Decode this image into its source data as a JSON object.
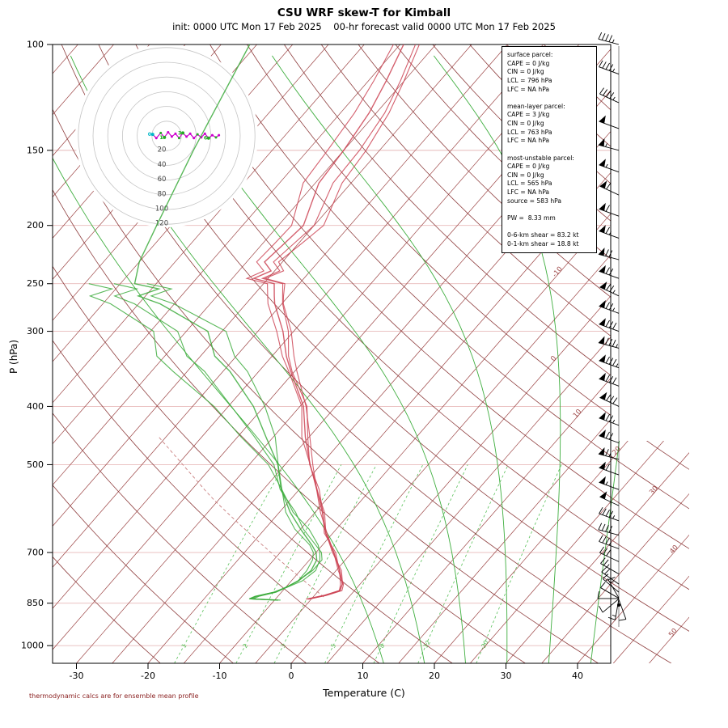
{
  "header": {
    "title": "CSU WRF skew-T for Kimball",
    "subtitle": "init: 0000 UTC Mon 17 Feb 2025    00-hr forecast valid 0000 UTC Mon 17 Feb 2025"
  },
  "axes": {
    "xlabel": "Temperature (C)",
    "ylabel": "P (hPa)",
    "pressure_ticks": [
      100,
      150,
      200,
      250,
      300,
      400,
      500,
      700,
      850,
      1000
    ],
    "temp_ticks": [
      -30,
      -20,
      -10,
      0,
      10,
      20,
      30,
      40
    ]
  },
  "info_box": {
    "text": "surface parcel:\nCAPE = 0 J/kg\nCIN = 0 J/kg\nLCL = 796 hPa\nLFC = NA hPa\n\nmean-layer parcel:\nCAPE = 3 J/kg\nCIN = 0 J/kg\nLCL = 763 hPa\nLFC = NA hPa\n\nmost-unstable parcel:\nCAPE = 0 J/kg\nCIN = 0 J/kg\nLCL = 565 hPa\nLFC = NA hPa\nsource = 583 hPa\n\nPW =  8.33 mm\n\n0-6-km shear = 83.2 kt\n0-1-km shear = 18.8 kt"
  },
  "footer": {
    "note": "thermodynamic calcs are for ensemble mean profile"
  },
  "chart_data": {
    "type": "line",
    "variant": "skew-t log-p ensemble sounding with hodograph and wind barbs",
    "title": "CSU WRF skew-T for Kimball",
    "xlabel": "Temperature (C)",
    "ylabel": "P (hPa)",
    "pressure_range_hpa": [
      100,
      1070
    ],
    "temp_axis_range_c": [
      -33,
      45
    ],
    "isotherm_step_c": 5,
    "dry_adiabat_step_k": 10,
    "moist_adiabats_c": [
      10,
      16,
      22,
      28,
      34,
      40
    ],
    "mixing_ratio_labels": [
      1,
      2,
      3,
      5,
      8,
      12,
      20
    ],
    "isotherm_labels": [
      -10,
      0,
      10,
      20,
      30,
      40,
      50
    ],
    "temperature_profile": [
      [
        100,
        -59.5
      ],
      [
        115,
        -57.5
      ],
      [
        130,
        -56
      ],
      [
        150,
        -55
      ],
      [
        170,
        -54.5
      ],
      [
        200,
        -51.5
      ],
      [
        215,
        -52
      ],
      [
        230,
        -52.5
      ],
      [
        238,
        -50.5
      ],
      [
        245,
        -52
      ],
      [
        250,
        -48.5
      ],
      [
        262,
        -47
      ],
      [
        270,
        -46
      ],
      [
        300,
        -41.5
      ],
      [
        330,
        -38
      ],
      [
        350,
        -35.5
      ],
      [
        400,
        -29.5
      ],
      [
        450,
        -25.5
      ],
      [
        500,
        -21.5
      ],
      [
        550,
        -17.5
      ],
      [
        600,
        -14
      ],
      [
        650,
        -11
      ],
      [
        700,
        -7.5
      ],
      [
        750,
        -4.5
      ],
      [
        790,
        -2.5
      ],
      [
        810,
        -2
      ],
      [
        825,
        -3.5
      ],
      [
        837,
        -5.5
      ]
    ],
    "dewpoint_profile": [
      [
        100,
        -81
      ],
      [
        150,
        -76
      ],
      [
        200,
        -72
      ],
      [
        230,
        -70
      ],
      [
        250,
        -68
      ],
      [
        255,
        -64
      ],
      [
        262,
        -66
      ],
      [
        270,
        -62
      ],
      [
        300,
        -52
      ],
      [
        330,
        -48
      ],
      [
        350,
        -44
      ],
      [
        400,
        -36.5
      ],
      [
        450,
        -31
      ],
      [
        500,
        -26
      ],
      [
        550,
        -22.5
      ],
      [
        600,
        -18.5
      ],
      [
        640,
        -15
      ],
      [
        680,
        -11.5
      ],
      [
        700,
        -10
      ],
      [
        720,
        -9
      ],
      [
        750,
        -8.5
      ],
      [
        780,
        -9
      ],
      [
        800,
        -10
      ],
      [
        815,
        -11
      ],
      [
        828,
        -13
      ],
      [
        836,
        -13.5
      ],
      [
        840,
        -9.5
      ]
    ],
    "parcels": {
      "surface": {
        "cape_jkg": 0,
        "cin_jkg": 0,
        "lcl_hpa": 796,
        "lfc_hpa": "NA"
      },
      "mean_layer": {
        "cape_jkg": 3,
        "cin_jkg": 0,
        "lcl_hpa": 763,
        "lfc_hpa": "NA"
      },
      "most_unstable": {
        "cape_jkg": 0,
        "cin_jkg": 0,
        "lcl_hpa": 565,
        "lfc_hpa": "NA",
        "source_hpa": 583
      },
      "pw_mm": 8.33,
      "shear_0_6km_kt": 83.2,
      "shear_0_1km_kt": 18.8
    },
    "hodograph": {
      "units": "kt",
      "ring_labels": [
        20,
        40,
        60,
        80,
        100,
        120
      ],
      "trace_uv_kt": [
        [
          -19,
          2
        ],
        [
          -14,
          -3
        ],
        [
          -8,
          4
        ],
        [
          -3,
          -2
        ],
        [
          2,
          5
        ],
        [
          7,
          -1
        ],
        [
          12,
          3
        ],
        [
          17,
          -3
        ],
        [
          22,
          4
        ],
        [
          27,
          -1
        ],
        [
          32,
          3
        ],
        [
          37,
          -3
        ],
        [
          42,
          2
        ],
        [
          47,
          -2
        ],
        [
          52,
          3
        ],
        [
          57,
          -3
        ],
        [
          62,
          1
        ],
        [
          67,
          -2
        ],
        [
          71,
          1
        ]
      ],
      "km_markers": [
        {
          "km": 0,
          "u": -19,
          "v": 2,
          "color": "#00b7c8"
        },
        {
          "km": 1,
          "u": -3,
          "v": -2,
          "color": "#22aa22"
        },
        {
          "km": 3,
          "u": 22,
          "v": 4,
          "color": "#22aa22"
        },
        {
          "km": 6,
          "u": 57,
          "v": -3,
          "color": "#22aa22"
        }
      ]
    },
    "wind_barbs": [
      [
        100,
        45,
        285
      ],
      [
        112,
        48,
        290
      ],
      [
        125,
        45,
        295
      ],
      [
        138,
        50,
        290
      ],
      [
        150,
        55,
        285
      ],
      [
        163,
        55,
        290
      ],
      [
        178,
        60,
        295
      ],
      [
        193,
        60,
        290
      ],
      [
        210,
        65,
        290
      ],
      [
        228,
        70,
        285
      ],
      [
        245,
        70,
        290
      ],
      [
        262,
        75,
        295
      ],
      [
        280,
        75,
        290
      ],
      [
        300,
        80,
        290
      ],
      [
        320,
        85,
        285
      ],
      [
        345,
        85,
        290
      ],
      [
        370,
        80,
        290
      ],
      [
        400,
        80,
        295
      ],
      [
        430,
        75,
        290
      ],
      [
        460,
        70,
        290
      ],
      [
        490,
        65,
        285
      ],
      [
        520,
        60,
        290
      ],
      [
        550,
        55,
        290
      ],
      [
        585,
        50,
        295
      ],
      [
        620,
        45,
        290
      ],
      [
        655,
        40,
        285
      ],
      [
        690,
        35,
        290
      ],
      [
        725,
        30,
        295
      ],
      [
        760,
        25,
        300
      ],
      [
        790,
        20,
        305
      ],
      [
        815,
        15,
        310
      ]
    ],
    "surface_wind_fan": [
      [
        833,
        15,
        330
      ],
      [
        834,
        12,
        300
      ],
      [
        835,
        10,
        270
      ],
      [
        836,
        12,
        230
      ],
      [
        837,
        15,
        190
      ],
      [
        838,
        10,
        160
      ]
    ],
    "colors": {
      "temperature_trace": "#cc4455",
      "dewpoint_trace": "#3cab3c",
      "isotherm": "#9c4444",
      "dry_adiabat": "#8f3f3f",
      "moist_adiabat": "#3fae3f",
      "mixing_ratio": "#58c058",
      "pressure_line": "#e8baba",
      "hodograph_trace": "#cc00cc",
      "hodograph_ring": "#c4c4c4",
      "barb": "#000000",
      "footer_text": "#8b2222"
    }
  }
}
